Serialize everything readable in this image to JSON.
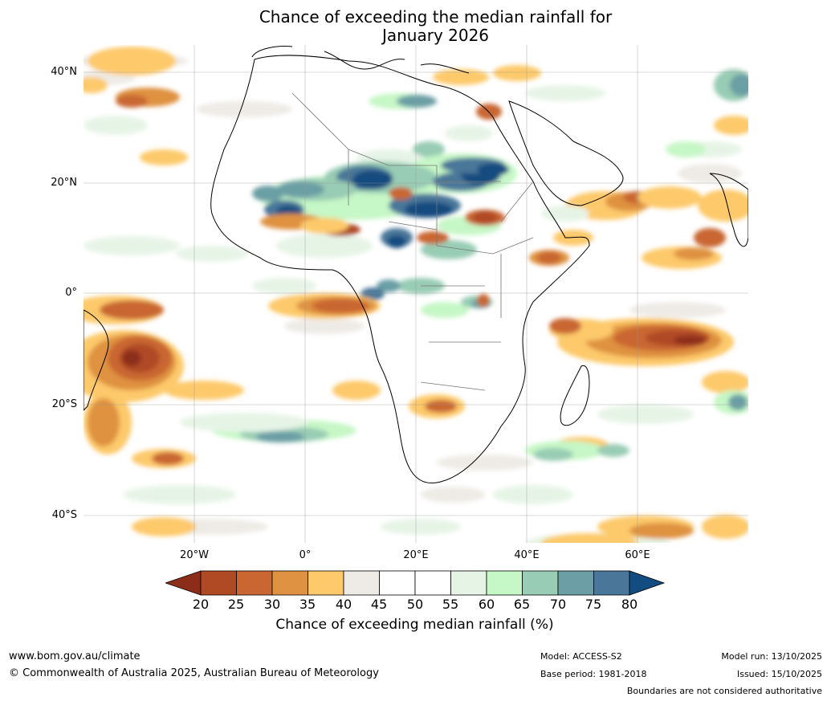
{
  "title": {
    "line1": "Chance of exceeding the median rainfall for",
    "line2": "January 2026"
  },
  "map": {
    "lat_labels": [
      "40°N",
      "20°N",
      "0°",
      "20°S",
      "40°S"
    ],
    "lon_labels": [
      "20°W",
      "0°",
      "20°E",
      "40°E",
      "60°E"
    ],
    "colors": {
      "c20": "#8c2d1a",
      "c25": "#b04a25",
      "c30": "#c96632",
      "c35": "#df9241",
      "c40": "#fdc96b",
      "c45": "#eeebe6",
      "c50": "#ffffff",
      "c55": "#ffffff",
      "c60": "#e6f4e6",
      "c65": "#c6f7c6",
      "c70": "#98ccb4",
      "c75": "#6b9fa5",
      "c80": "#4a7799",
      "c85": "#124c80"
    }
  },
  "colorbar": {
    "ticks": [
      "20",
      "25",
      "30",
      "35",
      "40",
      "45",
      "50",
      "55",
      "60",
      "65",
      "70",
      "75",
      "80"
    ],
    "label": "Chance of exceeding median rainfall (%)"
  },
  "footer": {
    "website": "www.bom.gov.au/climate",
    "copyright": "© Commonwealth of Australia 2025, Australian Bureau of Meteorology",
    "model": "Model: ACCESS-S2",
    "base_period": "Base period: 1981-2018",
    "model_run": "Model run: 13/10/2025",
    "issued": "Issued: 15/10/2025",
    "disclaimer": "Boundaries are not considered authoritative"
  }
}
